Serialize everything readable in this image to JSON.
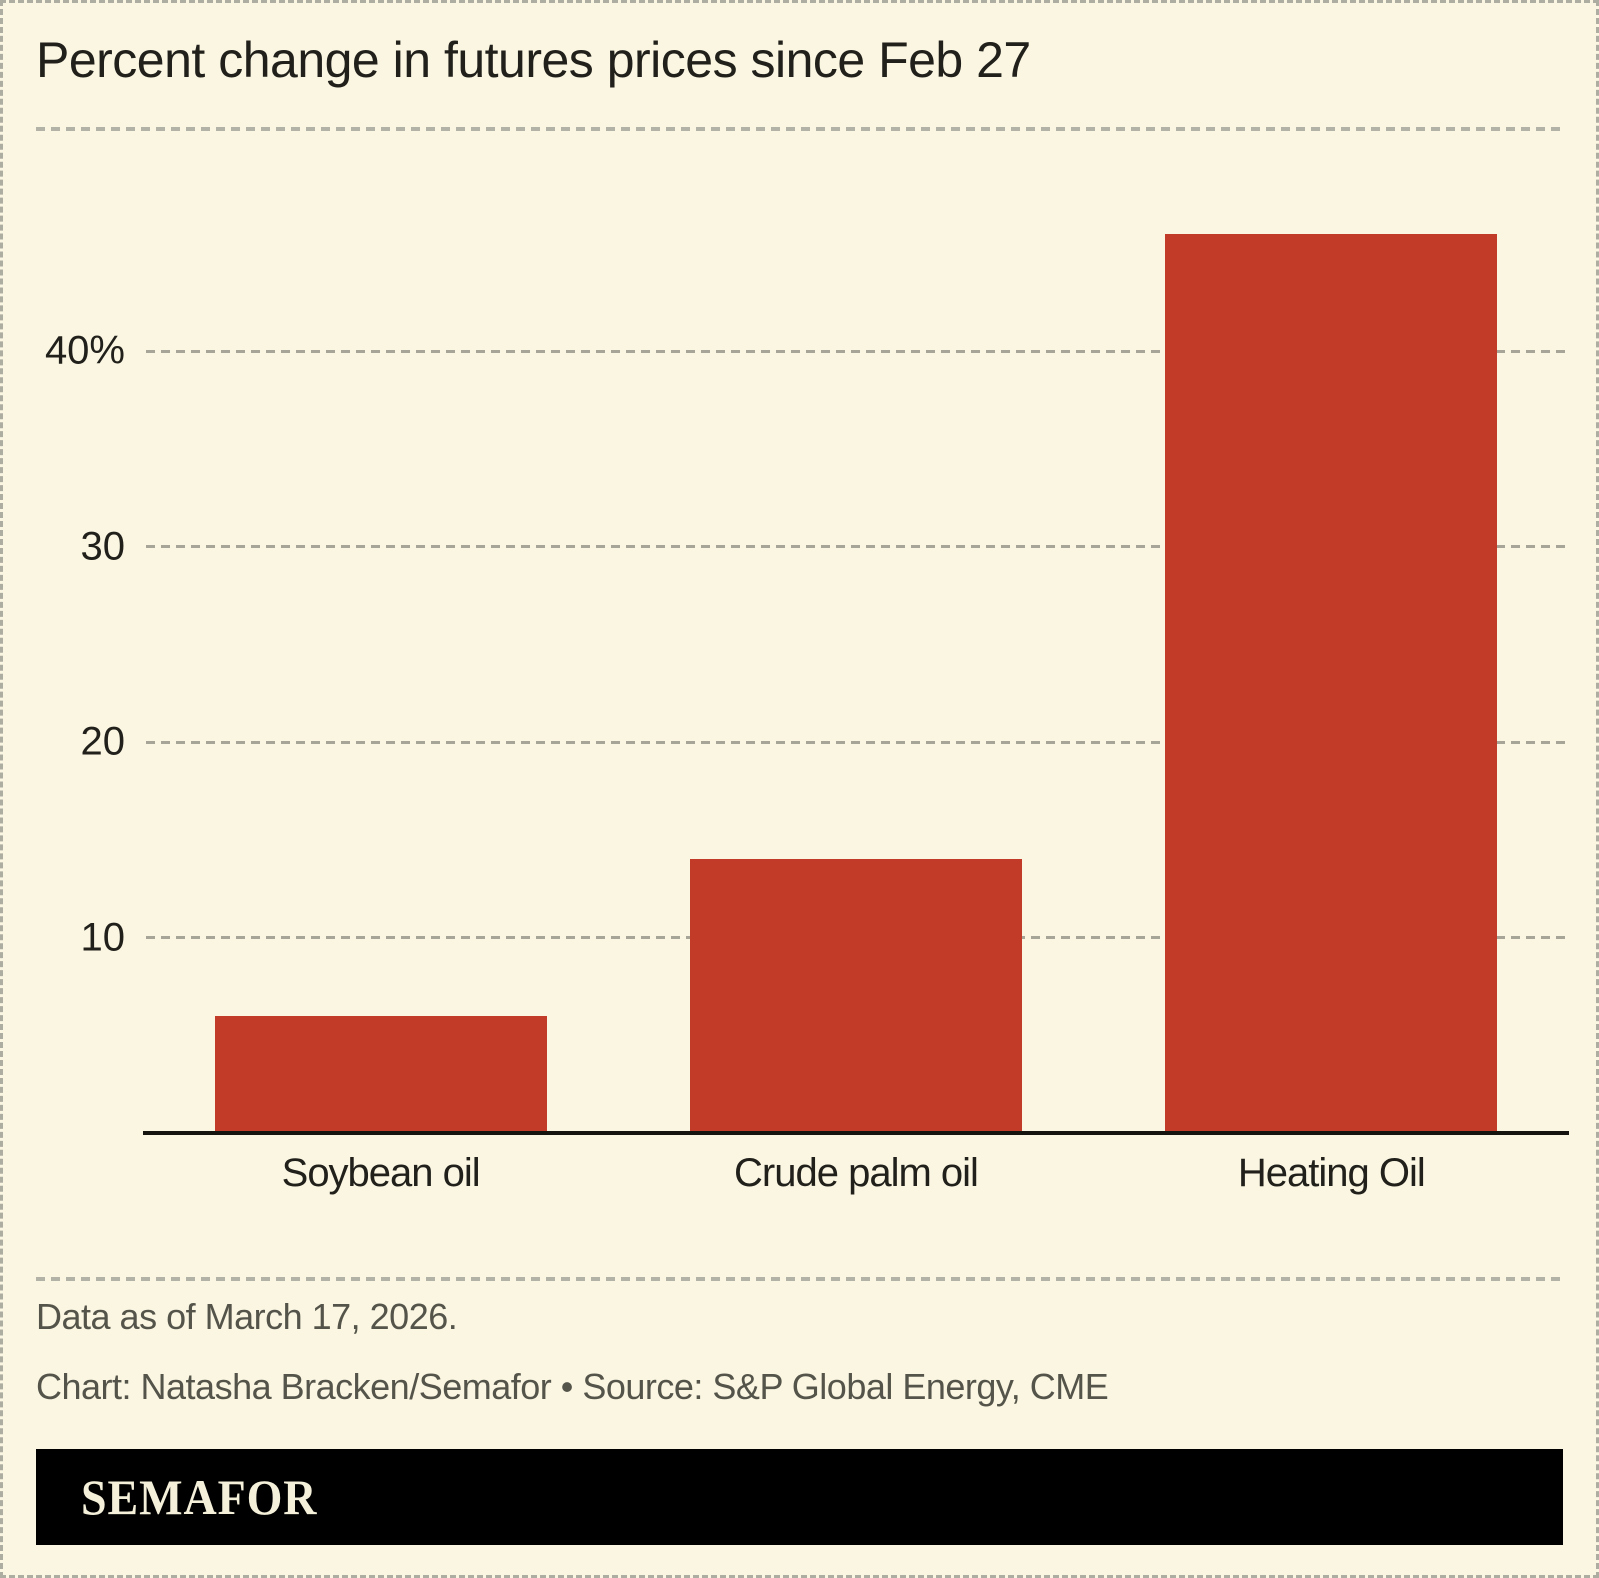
{
  "title": "Percent change in futures prices since Feb 27",
  "chart_data": {
    "type": "bar",
    "title": "Percent change in futures prices since Feb 27",
    "categories": [
      "Soybean oil",
      "Crude palm oil",
      "Heating Oil"
    ],
    "values": [
      6,
      14,
      46
    ],
    "unit": "percent",
    "xlabel": "",
    "ylabel": "",
    "yticks": [
      10,
      20,
      30,
      40
    ],
    "ytick_labels": [
      "10",
      "20",
      "30",
      "40%"
    ],
    "ylim": [
      0,
      50
    ],
    "grid": "horizontal-dashed",
    "legend": "none",
    "bar_color": "#c23a28"
  },
  "footer": {
    "note": "Data as of March 17, 2026.",
    "credit": "Chart: Natasha Bracken/Semafor • Source: S&P Global Energy, CME"
  },
  "logo": {
    "text": "SEMAFOR"
  },
  "colors": {
    "background": "#faf6e2",
    "bar": "#c23a28",
    "text_dark": "#21201b",
    "text_muted": "#55544a",
    "gridline": "#a6a598",
    "axis": "#15140f",
    "logo_background": "#000000",
    "logo_text": "#f4f0da"
  }
}
